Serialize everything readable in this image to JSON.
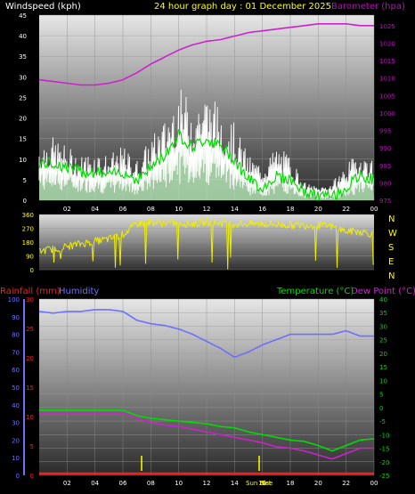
{
  "header": {
    "left_label": "Windspeed (kph)",
    "center_label": "24 hour graph day : 01 December 2025",
    "right_label": "Barometer (hpa)"
  },
  "colors": {
    "wind_speed": "#ffffff",
    "wind_avg": "#00dd00",
    "wind_band": "#bbeebb",
    "barometer": "#cc22cc",
    "direction": "#eeee00",
    "rain": "#ee2222",
    "humidity": "#6f6fff",
    "temperature": "#00dd00",
    "dewpoint": "#cc22cc",
    "left_title": "#ffffff",
    "center_title": "#ffff00",
    "right_title": "#cc00cc"
  },
  "bottom_header": {
    "rainfall_label": "Rainfall (mm)",
    "humidity_label": "Humidity",
    "temperature_label": "Temperature (°C)",
    "dewpoint_label": "Dew Point (°C)"
  },
  "sun_labels": [
    "Sun Rise",
    "Set"
  ],
  "compass_labels": [
    "N",
    "W",
    "S",
    "E",
    "N"
  ],
  "chart_data": [
    {
      "type": "line",
      "panel": "wind_barometer",
      "x_ticks": [
        "02",
        "04",
        "06",
        "08",
        "10",
        "12",
        "14",
        "16",
        "18",
        "20",
        "22",
        "00"
      ],
      "y_left_ticks": [
        "0",
        "5",
        "10",
        "15",
        "20",
        "25",
        "30",
        "35",
        "40",
        "45"
      ],
      "y_right_ticks": [
        "975",
        "980",
        "985",
        "990",
        "995",
        "1000",
        "1005",
        "1010",
        "1015",
        "1020",
        "1025"
      ],
      "ylim_left": [
        0,
        45
      ],
      "ylim_right": [
        975,
        1028
      ],
      "xlim": [
        0,
        24
      ],
      "series": [
        {
          "name": "Windspeed",
          "axis": "left",
          "hours": [
            0,
            1,
            2,
            3,
            4,
            5,
            6,
            7,
            8,
            9,
            10,
            11,
            12,
            13,
            14,
            15,
            16,
            17,
            18,
            19,
            20,
            21,
            22,
            23,
            24
          ],
          "values": [
            13,
            14,
            12,
            10,
            11,
            10,
            12,
            9,
            14,
            18,
            25,
            22,
            24,
            21,
            17,
            10,
            8,
            12,
            10,
            4,
            3,
            4,
            8,
            11,
            9
          ]
        },
        {
          "name": "Wind average",
          "axis": "left",
          "hours": [
            0,
            1,
            2,
            3,
            4,
            5,
            6,
            7,
            8,
            9,
            10,
            11,
            12,
            13,
            14,
            15,
            16,
            17,
            18,
            19,
            20,
            21,
            22,
            23,
            24
          ],
          "values": [
            9,
            9,
            8,
            7,
            7,
            6,
            7,
            5,
            8,
            11,
            16,
            13,
            15,
            13,
            10,
            5,
            3,
            6,
            5,
            2,
            1,
            1,
            3,
            6,
            5
          ]
        },
        {
          "name": "Barometer",
          "axis": "right",
          "hours": [
            0,
            1,
            2,
            3,
            4,
            5,
            6,
            7,
            8,
            9,
            10,
            11,
            12,
            13,
            14,
            15,
            16,
            17,
            18,
            19,
            20,
            21,
            22,
            23,
            24
          ],
          "values": [
            1009.5,
            1009,
            1008.5,
            1008,
            1008,
            1008.5,
            1009.5,
            1011.5,
            1014,
            1016,
            1018,
            1019.5,
            1020.5,
            1021,
            1022,
            1023,
            1023.5,
            1024,
            1024.5,
            1025,
            1025.5,
            1025.5,
            1025.5,
            1025,
            1025
          ]
        }
      ]
    },
    {
      "type": "scatter",
      "panel": "wind_direction",
      "x_ticks": [
        "02",
        "04",
        "06",
        "08",
        "10",
        "12",
        "14",
        "16",
        "18",
        "20",
        "22",
        "00"
      ],
      "y_ticks": [
        "0",
        "90",
        "180",
        "270",
        "360"
      ],
      "ylim": [
        0,
        360
      ],
      "xlim": [
        0,
        24
      ],
      "series": [
        {
          "name": "Wind direction",
          "hours": [
            0,
            1,
            2,
            3,
            4,
            5,
            6,
            7,
            8,
            9,
            10,
            11,
            12,
            13,
            14,
            15,
            16,
            17,
            18,
            19,
            20,
            21,
            22,
            23,
            24
          ],
          "values": [
            120,
            135,
            150,
            170,
            185,
            200,
            230,
            300,
            310,
            305,
            305,
            300,
            310,
            305,
            300,
            300,
            300,
            295,
            290,
            290,
            290,
            280,
            250,
            250,
            230
          ]
        }
      ]
    },
    {
      "type": "line",
      "panel": "temp_humidity_rain",
      "x_ticks": [
        "02",
        "04",
        "06",
        "08",
        "10",
        "12",
        "14",
        "16",
        "18",
        "20",
        "22",
        "00"
      ],
      "y_humidity_ticks": [
        "0",
        "10",
        "20",
        "30",
        "40",
        "50",
        "60",
        "70",
        "80",
        "90",
        "100"
      ],
      "y_rain_ticks": [
        "0",
        "5",
        "10",
        "15",
        "20",
        "25",
        "30"
      ],
      "y_temp_ticks": [
        "-25",
        "-20",
        "-15",
        "-10",
        "-5",
        "0",
        "5",
        "10",
        "15",
        "20",
        "25",
        "30",
        "35",
        "40"
      ],
      "ylim_humidity": [
        0,
        100
      ],
      "ylim_rain": [
        0,
        30
      ],
      "ylim_temp": [
        -25,
        40
      ],
      "xlim": [
        0,
        24
      ],
      "series": [
        {
          "name": "Humidity",
          "axis": "humidity",
          "hours": [
            0,
            1,
            2,
            3,
            4,
            5,
            6,
            7,
            8,
            9,
            10,
            11,
            12,
            13,
            14,
            15,
            16,
            17,
            18,
            19,
            20,
            21,
            22,
            23,
            24
          ],
          "values": [
            93,
            92,
            93,
            93,
            94,
            94,
            93,
            88,
            86,
            85,
            83,
            80,
            76,
            72,
            67,
            70,
            74,
            77,
            80,
            80,
            80,
            80,
            82,
            79,
            79
          ]
        },
        {
          "name": "Temperature",
          "axis": "temp",
          "hours": [
            0,
            1,
            2,
            3,
            4,
            5,
            6,
            7,
            8,
            9,
            10,
            11,
            12,
            13,
            14,
            15,
            16,
            17,
            18,
            19,
            20,
            21,
            22,
            23,
            24
          ],
          "values": [
            -1,
            -1,
            -1,
            -1,
            -1,
            -1,
            -1,
            -3,
            -4,
            -4.5,
            -5,
            -5.5,
            -6,
            -7,
            -7.5,
            -9,
            -10,
            -11,
            -12,
            -12.5,
            -14,
            -16,
            -14,
            -12,
            -11.5
          ]
        },
        {
          "name": "Dew Point",
          "axis": "temp",
          "hours": [
            0,
            1,
            2,
            3,
            4,
            5,
            6,
            7,
            8,
            9,
            10,
            11,
            12,
            13,
            14,
            15,
            16,
            17,
            18,
            19,
            20,
            21,
            22,
            23,
            24
          ],
          "values": [
            -2,
            -2,
            -2,
            -2,
            -2,
            -2,
            -2,
            -4,
            -5.5,
            -6.5,
            -7,
            -8,
            -9,
            -10,
            -11,
            -12,
            -13,
            -14.5,
            -15,
            -16,
            -17.5,
            -19,
            -17,
            -15,
            -15
          ]
        },
        {
          "name": "Rainfall",
          "axis": "rain",
          "hours": [
            0,
            24
          ],
          "values": [
            0.3,
            0.3
          ]
        }
      ]
    }
  ]
}
